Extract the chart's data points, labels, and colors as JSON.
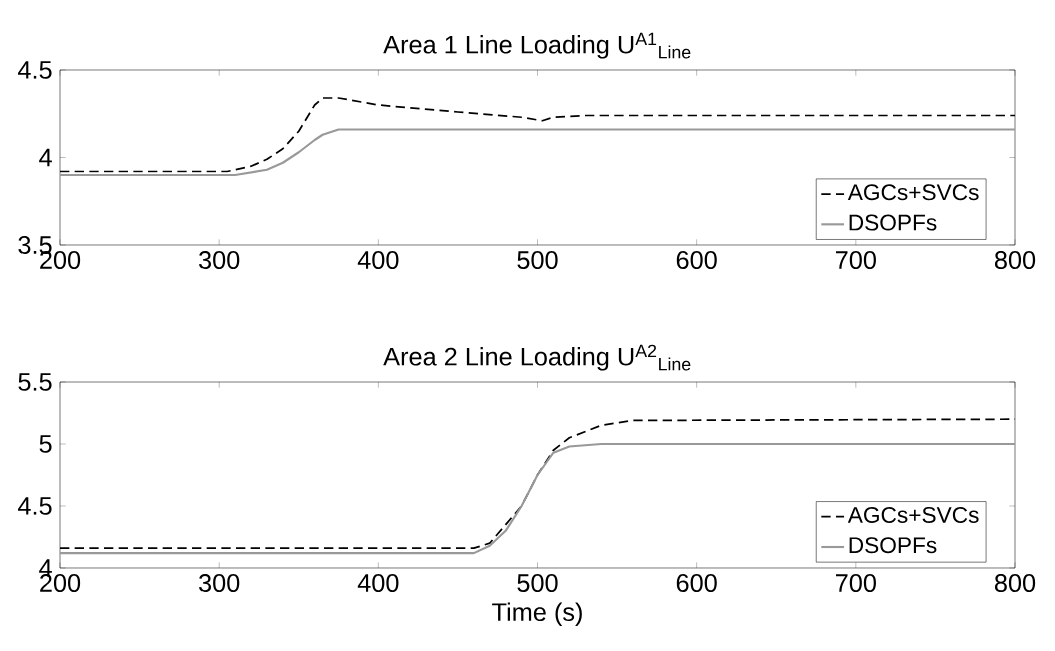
{
  "chart_data": [
    {
      "type": "line",
      "title": "Area 1 Line Loading U$^{A1}$$_{Line}$",
      "xlim": [
        200,
        800
      ],
      "xticks": [
        200,
        300,
        400,
        500,
        600,
        700,
        800
      ],
      "ylim": [
        3.5,
        4.5
      ],
      "yticks": [
        3.5,
        4,
        4.5
      ],
      "legend": "bottom right",
      "marker": "none",
      "series": [
        {
          "name": "AGCs+SVCs",
          "color": "#000000",
          "line_style": "dashed",
          "x": [
            200,
            305,
            320,
            330,
            340,
            350,
            360,
            365,
            375,
            400,
            450,
            490,
            503,
            510,
            530,
            800
          ],
          "values": [
            3.92,
            3.92,
            3.95,
            3.99,
            4.05,
            4.15,
            4.3,
            4.34,
            4.34,
            4.3,
            4.26,
            4.23,
            4.21,
            4.23,
            4.24,
            4.24
          ]
        },
        {
          "name": "DSOPFs",
          "color": "#999999",
          "line_style": "solid",
          "x": [
            200,
            310,
            330,
            340,
            350,
            360,
            365,
            375,
            800
          ],
          "values": [
            3.9,
            3.9,
            3.93,
            3.97,
            4.03,
            4.1,
            4.13,
            4.16,
            4.16
          ]
        }
      ]
    },
    {
      "type": "line",
      "title": "Area 2 Line Loading U$^{A2}$$_{Line}$",
      "xlabel": "Time (s)",
      "xlim": [
        200,
        800
      ],
      "xticks": [
        200,
        300,
        400,
        500,
        600,
        700,
        800
      ],
      "ylim": [
        4,
        5.5
      ],
      "yticks": [
        4,
        4.5,
        5,
        5.5
      ],
      "legend": "bottom right",
      "marker": "none",
      "series": [
        {
          "name": "AGCs+SVCs",
          "color": "#000000",
          "line_style": "dashed",
          "x": [
            200,
            460,
            470,
            480,
            490,
            500,
            510,
            520,
            540,
            560,
            800
          ],
          "values": [
            4.16,
            4.16,
            4.2,
            4.35,
            4.5,
            4.75,
            4.95,
            5.05,
            5.15,
            5.19,
            5.2
          ]
        },
        {
          "name": "DSOPFs",
          "color": "#999999",
          "line_style": "solid",
          "x": [
            200,
            460,
            470,
            480,
            490,
            500,
            510,
            520,
            540,
            800
          ],
          "values": [
            4.12,
            4.12,
            4.18,
            4.3,
            4.5,
            4.75,
            4.93,
            4.98,
            5.0,
            5.0
          ]
        }
      ]
    }
  ]
}
